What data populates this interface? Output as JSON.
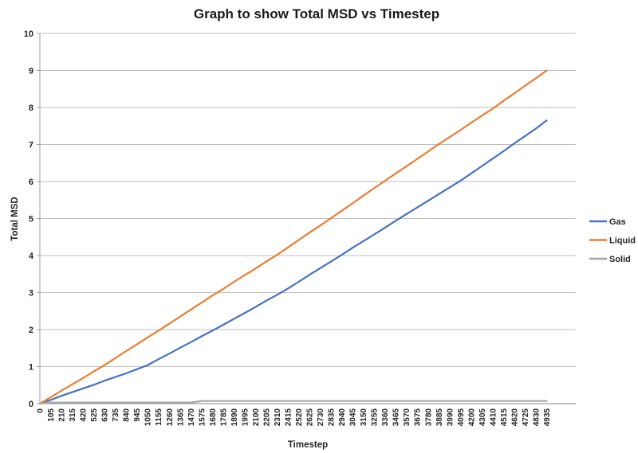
{
  "chart_data": {
    "type": "line",
    "title": "Graph to show Total MSD vs Timestep",
    "xlabel": "Timestep",
    "ylabel": "Total MSD",
    "ylim": [
      0,
      10
    ],
    "y_ticks": [
      0,
      1,
      2,
      3,
      4,
      5,
      6,
      7,
      8,
      9,
      10
    ],
    "grid": true,
    "legend_position": "right",
    "categories": [
      0,
      105,
      210,
      315,
      420,
      525,
      630,
      735,
      840,
      945,
      1050,
      1155,
      1260,
      1365,
      1470,
      1575,
      1680,
      1785,
      1890,
      1995,
      2100,
      2205,
      2310,
      2415,
      2520,
      2625,
      2730,
      2835,
      2940,
      3045,
      3150,
      3255,
      3360,
      3465,
      3570,
      3675,
      3780,
      3885,
      3990,
      4095,
      4200,
      4305,
      4410,
      4515,
      4620,
      4725,
      4830,
      4935
    ],
    "series": [
      {
        "name": "Gas",
        "color": "#4472C4",
        "values": [
          0,
          0.1,
          0.21,
          0.31,
          0.41,
          0.51,
          0.62,
          0.72,
          0.82,
          0.93,
          1.04,
          1.2,
          1.35,
          1.51,
          1.66,
          1.82,
          1.97,
          2.13,
          2.29,
          2.45,
          2.61,
          2.78,
          2.94,
          3.11,
          3.29,
          3.48,
          3.66,
          3.84,
          4.02,
          4.21,
          4.39,
          4.57,
          4.75,
          4.94,
          5.12,
          5.3,
          5.48,
          5.66,
          5.84,
          6.02,
          6.22,
          6.42,
          6.62,
          6.82,
          7.03,
          7.23,
          7.43,
          7.65
        ]
      },
      {
        "name": "Liquid",
        "color": "#ED7D31",
        "values": [
          0,
          0.17,
          0.35,
          0.52,
          0.69,
          0.87,
          1.04,
          1.23,
          1.42,
          1.6,
          1.79,
          1.97,
          2.16,
          2.35,
          2.54,
          2.73,
          2.92,
          3.1,
          3.29,
          3.47,
          3.65,
          3.84,
          4.02,
          4.22,
          4.42,
          4.62,
          4.81,
          5.01,
          5.21,
          5.41,
          5.62,
          5.82,
          6.02,
          6.22,
          6.41,
          6.61,
          6.81,
          7.01,
          7.2,
          7.39,
          7.59,
          7.78,
          7.97,
          8.18,
          8.38,
          8.59,
          8.79,
          9.0
        ]
      },
      {
        "name": "Solid",
        "color": "#A6A6A6",
        "values": [
          0,
          0.03,
          0.03,
          0.03,
          0.03,
          0.03,
          0.03,
          0.03,
          0.03,
          0.03,
          0.03,
          0.03,
          0.03,
          0.03,
          0.03,
          0.07,
          0.07,
          0.07,
          0.07,
          0.07,
          0.07,
          0.07,
          0.07,
          0.07,
          0.07,
          0.07,
          0.07,
          0.07,
          0.07,
          0.07,
          0.07,
          0.07,
          0.07,
          0.07,
          0.07,
          0.07,
          0.07,
          0.07,
          0.07,
          0.07,
          0.07,
          0.07,
          0.07,
          0.07,
          0.07,
          0.07,
          0.07,
          0.07
        ]
      }
    ]
  },
  "colors": {
    "gridline": "#BEBEBE",
    "axis_line": "#9E9E9E",
    "tick_text": "#262626",
    "background": "#FFFFFF"
  }
}
